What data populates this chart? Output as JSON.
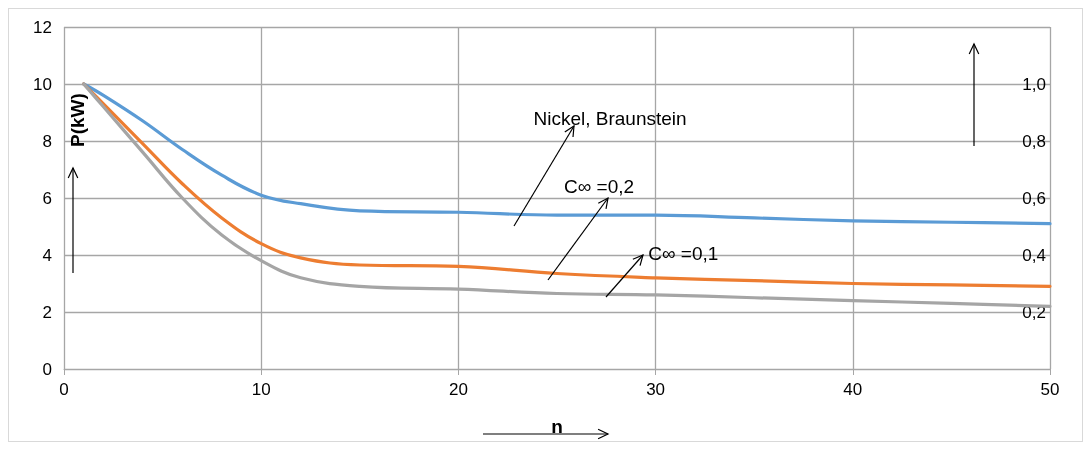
{
  "chart_data": {
    "type": "line",
    "xlabel": "n",
    "ylabel": "P(kW)",
    "xlim": [
      0,
      50
    ],
    "xticks": [
      0,
      10,
      20,
      30,
      40,
      50
    ],
    "ylim": [
      0,
      12
    ],
    "yticks": [
      0,
      2,
      4,
      6,
      8,
      10,
      12
    ],
    "y2lim": [
      0,
      1.2
    ],
    "y2ticks": [
      {
        "value": 0.2,
        "label": "0,2"
      },
      {
        "value": 0.4,
        "label": "0,4"
      },
      {
        "value": 0.6,
        "label": "0,6"
      },
      {
        "value": 0.8,
        "label": "0,8"
      },
      {
        "value": 1.0,
        "label": "1,0"
      }
    ],
    "grid": true,
    "marker": "none",
    "line_style": "solid",
    "x": [
      1,
      2,
      4,
      6,
      8,
      10,
      12,
      15,
      20,
      25,
      30,
      35,
      40,
      45,
      50
    ],
    "series": [
      {
        "color": "#5b9bd5",
        "values": [
          10,
          9.6,
          8.7,
          7.7,
          6.8,
          6.1,
          5.8,
          5.55,
          5.5,
          5.4,
          5.4,
          5.3,
          5.2,
          5.15,
          5.1
        ]
      },
      {
        "color": "#ed7d31",
        "values": [
          10,
          9.3,
          7.9,
          6.5,
          5.3,
          4.4,
          3.9,
          3.65,
          3.6,
          3.35,
          3.2,
          3.1,
          3.0,
          2.95,
          2.9
        ]
      },
      {
        "color": "#a5a5a5",
        "values": [
          10,
          9.2,
          7.6,
          6.0,
          4.7,
          3.8,
          3.2,
          2.9,
          2.8,
          2.65,
          2.6,
          2.5,
          2.4,
          2.3,
          2.2
        ]
      }
    ],
    "annotations": [
      "Nickel, Braunstein",
      "C∞ =0,2",
      {
        "text": "C∞ =0,1",
        "x": 27.6,
        "y": 2.62
      }
    ]
  }
}
